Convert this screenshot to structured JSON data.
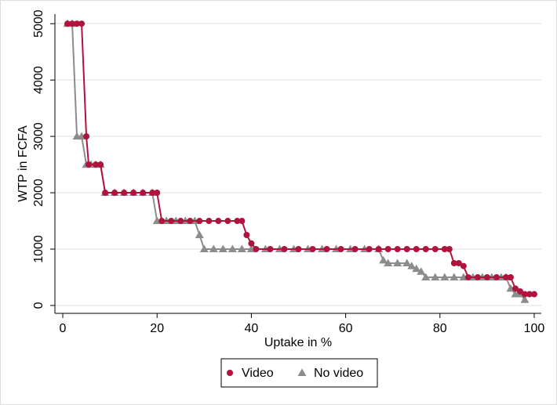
{
  "chart_data": {
    "type": "line",
    "x_label": "Uptake in %",
    "y_label": "WTP in FCFA",
    "xlim": [
      -1.5,
      101.5
    ],
    "xticks": [
      0,
      20,
      40,
      60,
      80,
      100
    ],
    "ylim": [
      -140,
      5170
    ],
    "yticks": [
      0,
      1000,
      2000,
      3000,
      4000,
      5000
    ],
    "grid": true,
    "legend": "bottom",
    "series": [
      {
        "name": "Video",
        "color": "#b0143c",
        "marker": "circle",
        "x": [
          1,
          2,
          3,
          4,
          5,
          5.5,
          7,
          8,
          9,
          11,
          13,
          15,
          17,
          19,
          20,
          21,
          23,
          25,
          27,
          29,
          31,
          33,
          35,
          37,
          38,
          39,
          40,
          41,
          44,
          47,
          50,
          53,
          56,
          59,
          62,
          65,
          67,
          69,
          71,
          73,
          75,
          77,
          79,
          81,
          82,
          83,
          84,
          85,
          86,
          88,
          90,
          92,
          94,
          95,
          96,
          97,
          98,
          99,
          100
        ],
        "values": [
          5000,
          5000,
          5000,
          5000,
          3000,
          2500,
          2500,
          2500,
          2000,
          2000,
          2000,
          2000,
          2000,
          2000,
          2000,
          1500,
          1500,
          1500,
          1500,
          1500,
          1500,
          1500,
          1500,
          1500,
          1500,
          1250,
          1100,
          1000,
          1000,
          1000,
          1000,
          1000,
          1000,
          1000,
          1000,
          1000,
          1000,
          1000,
          1000,
          1000,
          1000,
          1000,
          1000,
          1000,
          1000,
          750,
          750,
          700,
          500,
          500,
          500,
          500,
          500,
          500,
          300,
          250,
          200,
          200,
          200
        ]
      },
      {
        "name": "No video",
        "color": "#8c8c8c",
        "marker": "triangle",
        "x": [
          1,
          2,
          3,
          4,
          5,
          6,
          7,
          8,
          9,
          11,
          13,
          15,
          17,
          19,
          20,
          22,
          24,
          26,
          28,
          29,
          30,
          32,
          34,
          36,
          38,
          40,
          43,
          46,
          49,
          52,
          55,
          58,
          61,
          64,
          67,
          68,
          69,
          71,
          73,
          74,
          75,
          76,
          77,
          79,
          81,
          83,
          85,
          87,
          89,
          91,
          93,
          94,
          95,
          96,
          97,
          98
        ],
        "values": [
          5000,
          5000,
          3000,
          3000,
          2500,
          2500,
          2500,
          2500,
          2000,
          2000,
          2000,
          2000,
          2000,
          2000,
          1500,
          1500,
          1500,
          1500,
          1500,
          1250,
          1000,
          1000,
          1000,
          1000,
          1000,
          1000,
          1000,
          1000,
          1000,
          1000,
          1000,
          1000,
          1000,
          1000,
          1000,
          800,
          750,
          750,
          750,
          700,
          650,
          600,
          500,
          500,
          500,
          500,
          500,
          500,
          500,
          500,
          500,
          500,
          300,
          200,
          200,
          100
        ]
      }
    ]
  }
}
